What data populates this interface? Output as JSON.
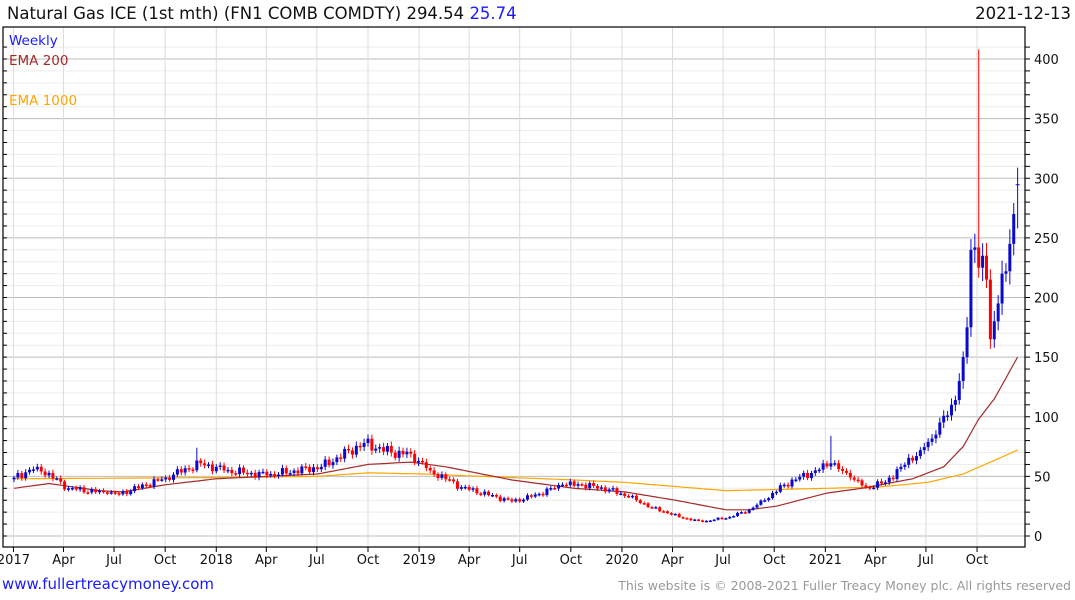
{
  "header": {
    "title": "Natural Gas ICE (1st mth) (FN1 COMB COMDTY) 294.54",
    "change": "25.74",
    "date": "2021-12-13"
  },
  "footer": {
    "site": "www.fullertreacymoney.com",
    "copyright": "This website is © 2008-2021 Fuller Treacy Money plc. All rights reserved"
  },
  "colors": {
    "up": "#0a0acc",
    "down": "#ff0000",
    "ema200": "#a52a2a",
    "ema1000": "#ffa500",
    "legend_weekly": "#1a1aff"
  },
  "chart_data": {
    "type": "candlestick",
    "title": "Natural Gas ICE (1st mth) (FN1 COMB COMDTY)",
    "legend": [
      "Weekly",
      "EMA 200",
      "EMA 1000"
    ],
    "legend_placement": "top-left",
    "start_date": "2017-01-02",
    "end_date": "2021-12-13",
    "ylim": [
      0,
      420
    ],
    "yticks": [
      0,
      50,
      100,
      150,
      200,
      250,
      300,
      350,
      400
    ],
    "xticks": [
      {
        "label": "2017",
        "date": "2017-01-01"
      },
      {
        "label": "Apr",
        "date": "2017-04-01"
      },
      {
        "label": "Jul",
        "date": "2017-07-01"
      },
      {
        "label": "Oct",
        "date": "2017-10-01"
      },
      {
        "label": "2018",
        "date": "2018-01-01"
      },
      {
        "label": "Apr",
        "date": "2018-04-01"
      },
      {
        "label": "Jul",
        "date": "2018-07-01"
      },
      {
        "label": "Oct",
        "date": "2018-10-01"
      },
      {
        "label": "2019",
        "date": "2019-01-01"
      },
      {
        "label": "Apr",
        "date": "2019-04-01"
      },
      {
        "label": "Jul",
        "date": "2019-07-01"
      },
      {
        "label": "Oct",
        "date": "2019-10-01"
      },
      {
        "label": "2020",
        "date": "2020-01-01"
      },
      {
        "label": "Apr",
        "date": "2020-04-01"
      },
      {
        "label": "Jul",
        "date": "2020-07-01"
      },
      {
        "label": "Oct",
        "date": "2020-10-01"
      },
      {
        "label": "2021",
        "date": "2021-01-01"
      },
      {
        "label": "Apr",
        "date": "2021-04-01"
      },
      {
        "label": "Jul",
        "date": "2021-07-01"
      },
      {
        "label": "Oct",
        "date": "2021-10-01"
      }
    ],
    "close_keypoints": [
      [
        "2017-01-02",
        49
      ],
      [
        "2017-02-13",
        58
      ],
      [
        "2017-04-10",
        40
      ],
      [
        "2017-06-19",
        36
      ],
      [
        "2017-07-10",
        35
      ],
      [
        "2017-10-02",
        49
      ],
      [
        "2017-12-04",
        61
      ],
      [
        "2018-01-15",
        55
      ],
      [
        "2018-04-02",
        51
      ],
      [
        "2018-07-09",
        58
      ],
      [
        "2018-09-24",
        78
      ],
      [
        "2018-11-12",
        70
      ],
      [
        "2018-12-17",
        69
      ],
      [
        "2019-01-21",
        55
      ],
      [
        "2019-03-18",
        41
      ],
      [
        "2019-06-17",
        29
      ],
      [
        "2019-07-22",
        33
      ],
      [
        "2019-09-16",
        43
      ],
      [
        "2019-10-21",
        43
      ],
      [
        "2019-12-09",
        39
      ],
      [
        "2020-01-13",
        33
      ],
      [
        "2020-02-24",
        24
      ],
      [
        "2020-04-20",
        15
      ],
      [
        "2020-05-25",
        12
      ],
      [
        "2020-07-13",
        16
      ],
      [
        "2020-08-17",
        22
      ],
      [
        "2020-09-14",
        30
      ],
      [
        "2020-10-19",
        43
      ],
      [
        "2020-12-14",
        55
      ],
      [
        "2021-01-11",
        61
      ],
      [
        "2021-02-15",
        49
      ],
      [
        "2021-03-15",
        41
      ],
      [
        "2021-04-19",
        45
      ],
      [
        "2021-05-17",
        58
      ],
      [
        "2021-06-21",
        72
      ],
      [
        "2021-07-19",
        85
      ],
      [
        "2021-08-16",
        110
      ],
      [
        "2021-08-30",
        130
      ],
      [
        "2021-09-06",
        150
      ],
      [
        "2021-09-13",
        175
      ],
      [
        "2021-09-20",
        240
      ],
      [
        "2021-09-27",
        242
      ],
      [
        "2021-10-04",
        225
      ],
      [
        "2021-10-11",
        235
      ],
      [
        "2021-10-18",
        215
      ],
      [
        "2021-10-25",
        165
      ],
      [
        "2021-11-01",
        180
      ],
      [
        "2021-11-08",
        195
      ],
      [
        "2021-11-15",
        220
      ],
      [
        "2021-11-22",
        222
      ],
      [
        "2021-11-29",
        245
      ],
      [
        "2021-12-06",
        270
      ],
      [
        "2021-12-13",
        294.54
      ]
    ],
    "spike_highs": [
      {
        "date": "2017-11-27",
        "high": 74
      },
      {
        "date": "2021-01-11",
        "high": 84
      },
      {
        "date": "2021-10-04",
        "high": 408
      }
    ],
    "ema200": [
      [
        "2017-01-02",
        40
      ],
      [
        "2017-03-06",
        44
      ],
      [
        "2017-06-05",
        38
      ],
      [
        "2017-07-17",
        37
      ],
      [
        "2017-10-02",
        43
      ],
      [
        "2018-01-01",
        48
      ],
      [
        "2018-07-02",
        52
      ],
      [
        "2018-10-01",
        60
      ],
      [
        "2018-12-17",
        62
      ],
      [
        "2019-02-18",
        58
      ],
      [
        "2019-06-17",
        47
      ],
      [
        "2019-10-07",
        40
      ],
      [
        "2020-01-06",
        37
      ],
      [
        "2020-04-06",
        30
      ],
      [
        "2020-07-06",
        22
      ],
      [
        "2020-08-17",
        22
      ],
      [
        "2020-10-05",
        25
      ],
      [
        "2021-01-04",
        36
      ],
      [
        "2021-03-08",
        40
      ],
      [
        "2021-06-07",
        48
      ],
      [
        "2021-08-02",
        58
      ],
      [
        "2021-09-06",
        75
      ],
      [
        "2021-10-04",
        98
      ],
      [
        "2021-11-01",
        115
      ],
      [
        "2021-12-13",
        150
      ]
    ],
    "ema1000": [
      [
        "2017-01-02",
        48
      ],
      [
        "2018-01-01",
        49
      ],
      [
        "2018-07-02",
        50
      ],
      [
        "2018-10-01",
        53
      ],
      [
        "2019-01-07",
        52
      ],
      [
        "2019-10-07",
        47
      ],
      [
        "2020-01-06",
        45
      ],
      [
        "2020-07-06",
        38
      ],
      [
        "2021-01-04",
        40
      ],
      [
        "2021-04-05",
        41
      ],
      [
        "2021-07-05",
        45
      ],
      [
        "2021-09-06",
        52
      ],
      [
        "2021-12-13",
        72
      ]
    ]
  }
}
